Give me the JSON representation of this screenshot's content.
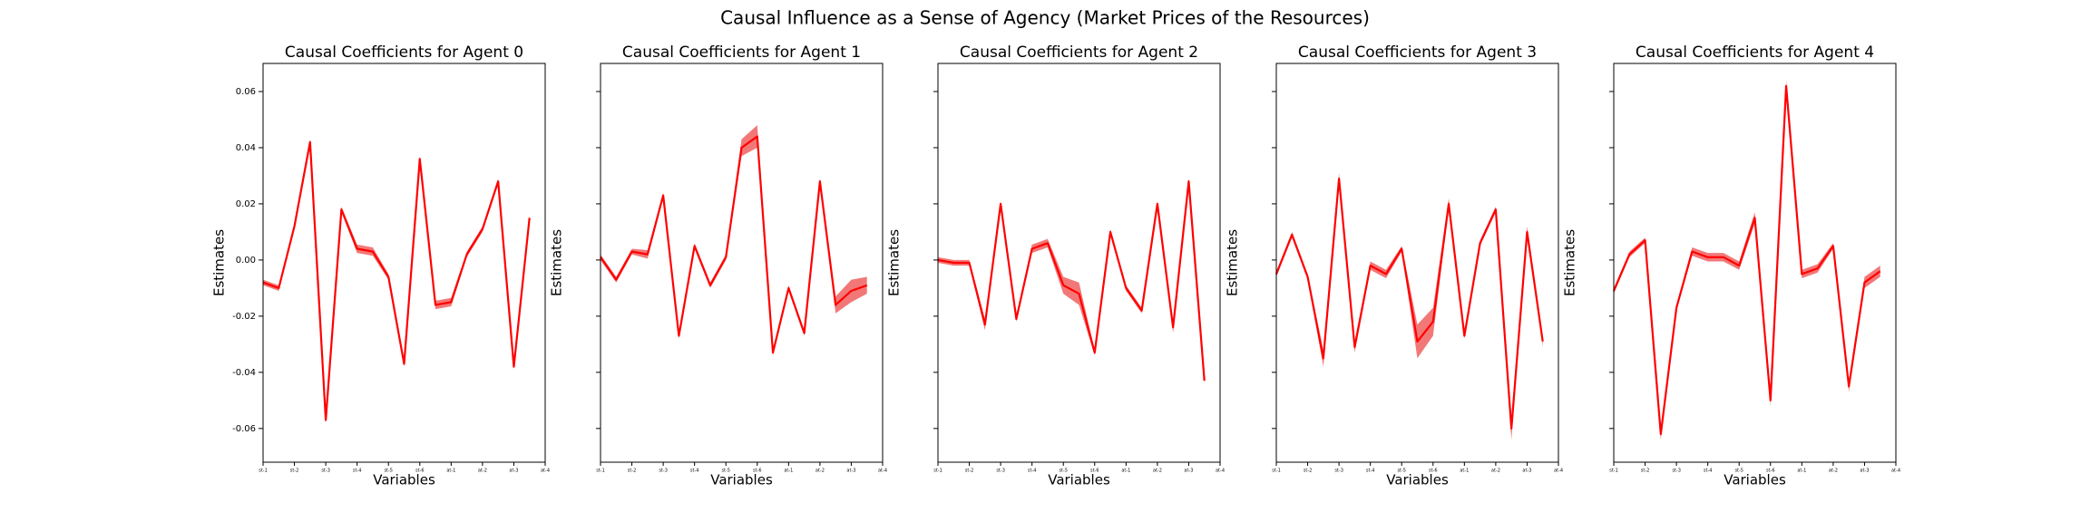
{
  "title": "Causal Influence as a Sense of Agency (Market Prices of the Resources)",
  "chart_data": [
    {
      "type": "line",
      "title": "Causal Coefficients for Agent 0",
      "x_label": "Variables",
      "y_label": "Estimates",
      "xlim": [
        0,
        18
      ],
      "xticks": [
        {
          "value": 0,
          "label": "st-1"
        },
        {
          "value": 2,
          "label": "st-2"
        },
        {
          "value": 4,
          "label": "st-3"
        },
        {
          "value": 6,
          "label": "st-4"
        },
        {
          "value": 8,
          "label": "st-5"
        },
        {
          "value": 10,
          "label": "st-6"
        },
        {
          "value": 12,
          "label": "at-1"
        },
        {
          "value": 14,
          "label": "at-2"
        },
        {
          "value": 16,
          "label": "at-3"
        },
        {
          "value": 18,
          "label": "at-4"
        }
      ],
      "ylim": [
        -0.072,
        0.07
      ],
      "yticks": [
        -0.06,
        -0.04,
        -0.02,
        {
          "value": 0,
          "label": "0.00"
        },
        0.02,
        0.04,
        0.06
      ],
      "ytick_labels": true,
      "series": [
        {
          "color": "#ff0000",
          "band_color": "#f06060",
          "values": [
            -0.008,
            -0.01,
            0.012,
            0.042,
            -0.057,
            0.018,
            0.004,
            0.003,
            -0.006,
            -0.037,
            0.036,
            -0.016,
            -0.015,
            0.002,
            0.011,
            0.028,
            -0.038,
            0.015
          ],
          "errors": [
            0.001,
            0.001,
            0.001,
            0.001,
            0.001,
            0.001,
            0.0015,
            0.0015,
            0.001,
            0.001,
            0.001,
            0.0015,
            0.0015,
            0.001,
            0.001,
            0.001,
            0.001,
            0.001
          ]
        }
      ]
    },
    {
      "type": "line",
      "title": "Causal Coefficients for Agent 1",
      "x_label": "Variables",
      "y_label": "Estimates",
      "xlim": [
        0,
        18
      ],
      "xticks": [
        {
          "value": 0,
          "label": "st-1"
        },
        {
          "value": 2,
          "label": "st-2"
        },
        {
          "value": 4,
          "label": "st-3"
        },
        {
          "value": 6,
          "label": "st-4"
        },
        {
          "value": 8,
          "label": "st-5"
        },
        {
          "value": 10,
          "label": "st-6"
        },
        {
          "value": 12,
          "label": "at-1"
        },
        {
          "value": 14,
          "label": "at-2"
        },
        {
          "value": 16,
          "label": "at-3"
        },
        {
          "value": 18,
          "label": "at-4"
        }
      ],
      "ylim": [
        -0.072,
        0.07
      ],
      "yticks": [
        -0.06,
        -0.04,
        -0.02,
        0,
        0.02,
        0.04,
        0.06
      ],
      "ytick_labels": false,
      "series": [
        {
          "color": "#ff0000",
          "band_color": "#f06060",
          "values": [
            0.001,
            -0.007,
            0.003,
            0.002,
            0.023,
            -0.027,
            0.005,
            -0.009,
            0.001,
            0.04,
            0.044,
            -0.033,
            -0.01,
            -0.026,
            0.028,
            -0.016,
            -0.011,
            -0.009
          ],
          "errors": [
            0.001,
            0.001,
            0.001,
            0.0015,
            0.001,
            0.001,
            0.001,
            0.001,
            0.001,
            0.003,
            0.004,
            0.001,
            0.001,
            0.001,
            0.001,
            0.003,
            0.004,
            0.003
          ]
        }
      ]
    },
    {
      "type": "line",
      "title": "Causal Coefficients for Agent 2",
      "x_label": "Variables",
      "y_label": "Estimates",
      "xlim": [
        0,
        18
      ],
      "xticks": [
        {
          "value": 0,
          "label": "st-1"
        },
        {
          "value": 2,
          "label": "st-2"
        },
        {
          "value": 4,
          "label": "st-3"
        },
        {
          "value": 6,
          "label": "st-4"
        },
        {
          "value": 8,
          "label": "st-5"
        },
        {
          "value": 10,
          "label": "st-6"
        },
        {
          "value": 12,
          "label": "at-1"
        },
        {
          "value": 14,
          "label": "at-2"
        },
        {
          "value": 16,
          "label": "at-3"
        },
        {
          "value": 18,
          "label": "at-4"
        }
      ],
      "ylim": [
        -0.072,
        0.07
      ],
      "yticks": [
        -0.06,
        -0.04,
        -0.02,
        0,
        0.02,
        0.04,
        0.06
      ],
      "ytick_labels": false,
      "series": [
        {
          "color": "#ff0000",
          "band_color": "#f06060",
          "values": [
            0.0,
            -0.001,
            -0.001,
            -0.023,
            0.02,
            -0.021,
            0.004,
            0.006,
            -0.009,
            -0.012,
            -0.033,
            0.01,
            -0.01,
            -0.018,
            0.02,
            -0.024,
            0.028,
            -0.043
          ],
          "errors": [
            0.001,
            0.001,
            0.001,
            0.002,
            0.001,
            0.001,
            0.0015,
            0.0015,
            0.003,
            0.004,
            0.001,
            0.001,
            0.001,
            0.001,
            0.001,
            0.002,
            0.001,
            0.001
          ]
        }
      ]
    },
    {
      "type": "line",
      "title": "Causal Coefficients for Agent 3",
      "x_label": "Variables",
      "y_label": "Estimates",
      "xlim": [
        0,
        18
      ],
      "xticks": [
        {
          "value": 0,
          "label": "st-1"
        },
        {
          "value": 2,
          "label": "st-2"
        },
        {
          "value": 4,
          "label": "st-3"
        },
        {
          "value": 6,
          "label": "st-4"
        },
        {
          "value": 8,
          "label": "st-5"
        },
        {
          "value": 10,
          "label": "st-6"
        },
        {
          "value": 12,
          "label": "at-1"
        },
        {
          "value": 14,
          "label": "at-2"
        },
        {
          "value": 16,
          "label": "at-3"
        },
        {
          "value": 18,
          "label": "at-4"
        }
      ],
      "ylim": [
        -0.072,
        0.07
      ],
      "yticks": [
        -0.06,
        -0.04,
        -0.02,
        0,
        0.02,
        0.04,
        0.06
      ],
      "ytick_labels": false,
      "series": [
        {
          "color": "#ff0000",
          "band_color": "#f06060",
          "values": [
            -0.005,
            0.009,
            -0.006,
            -0.035,
            0.029,
            -0.031,
            -0.002,
            -0.005,
            0.004,
            -0.029,
            -0.022,
            0.02,
            -0.027,
            0.006,
            0.018,
            -0.06,
            0.01,
            -0.029
          ],
          "errors": [
            0.001,
            0.001,
            0.001,
            0.003,
            0.002,
            0.002,
            0.0015,
            0.0015,
            0.001,
            0.006,
            0.005,
            0.002,
            0.001,
            0.001,
            0.001,
            0.004,
            0.002,
            0.002
          ]
        }
      ]
    },
    {
      "type": "line",
      "title": "Causal Coefficients for Agent 4",
      "x_label": "Variables",
      "y_label": "Estimates",
      "xlim": [
        0,
        18
      ],
      "xticks": [
        {
          "value": 0,
          "label": "st-1"
        },
        {
          "value": 2,
          "label": "st-2"
        },
        {
          "value": 4,
          "label": "st-3"
        },
        {
          "value": 6,
          "label": "st-4"
        },
        {
          "value": 8,
          "label": "st-5"
        },
        {
          "value": 10,
          "label": "st-6"
        },
        {
          "value": 12,
          "label": "at-1"
        },
        {
          "value": 14,
          "label": "at-2"
        },
        {
          "value": 16,
          "label": "at-3"
        },
        {
          "value": 18,
          "label": "at-4"
        }
      ],
      "ylim": [
        -0.072,
        0.07
      ],
      "yticks": [
        -0.06,
        -0.04,
        -0.02,
        0,
        0.02,
        0.04,
        0.06
      ],
      "ytick_labels": false,
      "series": [
        {
          "color": "#ff0000",
          "band_color": "#f06060",
          "values": [
            -0.011,
            0.002,
            0.007,
            -0.062,
            -0.017,
            0.003,
            0.001,
            0.001,
            -0.002,
            0.015,
            -0.05,
            0.062,
            -0.005,
            -0.003,
            0.005,
            -0.045,
            -0.008,
            -0.004
          ],
          "errors": [
            0.001,
            0.001,
            0.001,
            0.002,
            0.001,
            0.0015,
            0.0015,
            0.0015,
            0.0015,
            0.002,
            0.002,
            0.002,
            0.0015,
            0.0015,
            0.001,
            0.002,
            0.002,
            0.002
          ]
        }
      ]
    }
  ]
}
